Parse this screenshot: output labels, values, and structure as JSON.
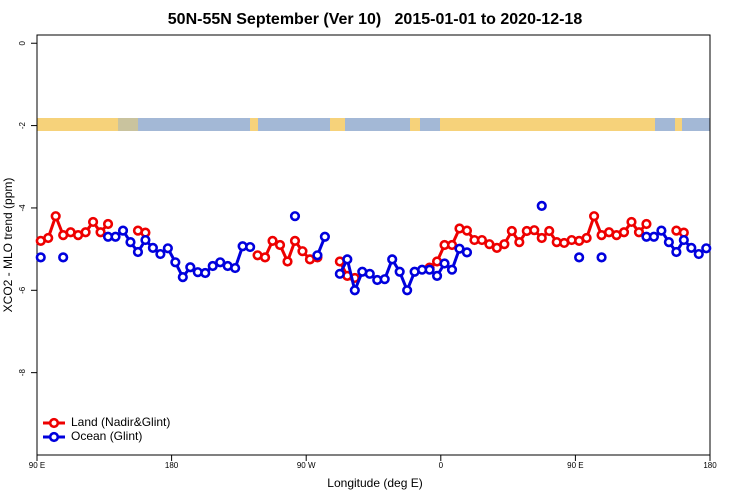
{
  "chart_data": {
    "type": "line",
    "title": "50N-55N September (Ver 10)   2015-01-01 to 2020-12-18",
    "xlabel": "Longitude (deg E)",
    "ylabel": "XCO2 - MLO trend (ppm)",
    "xlim": [
      90,
      540
    ],
    "ylim": [
      -10,
      0.2
    ],
    "xticks": [
      {
        "value": 90,
        "label": "90 E"
      },
      {
        "value": 180,
        "label": "180"
      },
      {
        "value": 270,
        "label": "90 W"
      },
      {
        "value": 360,
        "label": "0"
      },
      {
        "value": 450,
        "label": "90 E"
      },
      {
        "value": 540,
        "label": "180"
      }
    ],
    "yticks": [
      0,
      -2,
      -4,
      -6,
      -8
    ],
    "legend": "bottom-left",
    "x": [
      92.5,
      97.5,
      102.5,
      107.5,
      112.5,
      117.5,
      122.5,
      127.5,
      132.5,
      137.5,
      142.5,
      147.5,
      152.5,
      157.5,
      162.5,
      167.5,
      172.5,
      177.5,
      182.5,
      187.5,
      192.5,
      197.5,
      202.5,
      207.5,
      212.5,
      217.5,
      222.5,
      227.5,
      232.5,
      237.5,
      242.5,
      247.5,
      252.5,
      257.5,
      262.5,
      267.5,
      272.5,
      277.5,
      282.5,
      287.5,
      292.5,
      297.5,
      302.5,
      307.5,
      312.5,
      317.5,
      322.5,
      327.5,
      332.5,
      337.5,
      342.5,
      347.5,
      352.5,
      357.5,
      362.5,
      367.5,
      372.5,
      377.5,
      382.5,
      387.5,
      392.5,
      397.5,
      402.5,
      407.5,
      412.5,
      417.5,
      422.5,
      427.5,
      432.5,
      437.5,
      442.5,
      447.5,
      452.5,
      457.5,
      462.5,
      467.5,
      472.5,
      477.5,
      482.5,
      487.5,
      492.5,
      497.5,
      502.5,
      507.5,
      512.5,
      517.5,
      522.5,
      527.5,
      532.5,
      537.5
    ],
    "series": [
      {
        "name": "Land (Nadir&Glint)",
        "color": "#ee0000",
        "values": [
          -4.8,
          -4.73,
          -4.2,
          -4.66,
          -4.59,
          -4.66,
          -4.59,
          -4.34,
          -4.59,
          -4.39,
          null,
          null,
          null,
          -4.55,
          -4.6,
          null,
          null,
          null,
          null,
          null,
          null,
          null,
          null,
          null,
          null,
          null,
          null,
          null,
          null,
          -5.15,
          -5.2,
          -4.8,
          -4.9,
          -5.3,
          -4.8,
          -5.05,
          -5.25,
          -5.2,
          null,
          null,
          -5.3,
          -5.65,
          -5.7,
          null,
          null,
          null,
          null,
          null,
          null,
          null,
          null,
          null,
          -5.45,
          -5.3,
          -4.9,
          -4.9,
          -4.5,
          -4.55,
          -4.78,
          -4.78,
          -4.88,
          -4.97,
          -4.88,
          -4.56,
          -4.83,
          -4.56,
          -4.54,
          -4.73,
          -4.56,
          -4.83,
          -4.85,
          -4.78,
          -4.8,
          -4.73,
          -4.2,
          -4.66,
          -4.59,
          -4.66,
          -4.59,
          -4.34,
          -4.59,
          -4.39,
          null,
          null,
          null,
          -4.55,
          -4.6,
          null,
          null,
          null
        ]
      },
      {
        "name": "Ocean (Glint)",
        "color": "#0000dd",
        "values": [
          -5.2,
          null,
          null,
          -5.2,
          null,
          null,
          null,
          null,
          null,
          -4.7,
          -4.7,
          -4.55,
          -4.83,
          -5.07,
          -4.78,
          -4.97,
          -5.12,
          -4.98,
          -5.32,
          -5.68,
          -5.44,
          -5.56,
          -5.58,
          -5.41,
          -5.32,
          -5.41,
          -5.46,
          -4.93,
          -4.95,
          null,
          null,
          null,
          null,
          null,
          -4.2,
          null,
          null,
          -5.15,
          -4.7,
          null,
          -5.6,
          -5.25,
          -6.0,
          -5.55,
          -5.6,
          -5.75,
          -5.73,
          -5.25,
          -5.55,
          -6.0,
          -5.55,
          -5.5,
          -5.5,
          -5.65,
          -5.35,
          -5.5,
          -4.99,
          -5.08,
          null,
          null,
          null,
          null,
          null,
          null,
          null,
          null,
          null,
          -3.95,
          null,
          null,
          null,
          null,
          -5.2,
          null,
          null,
          -5.2,
          null,
          null,
          null,
          null,
          null,
          -4.7,
          -4.7,
          -4.55,
          -4.83,
          -5.07,
          -4.78,
          -4.97,
          -5.12,
          -4.98
        ]
      }
    ]
  }
}
